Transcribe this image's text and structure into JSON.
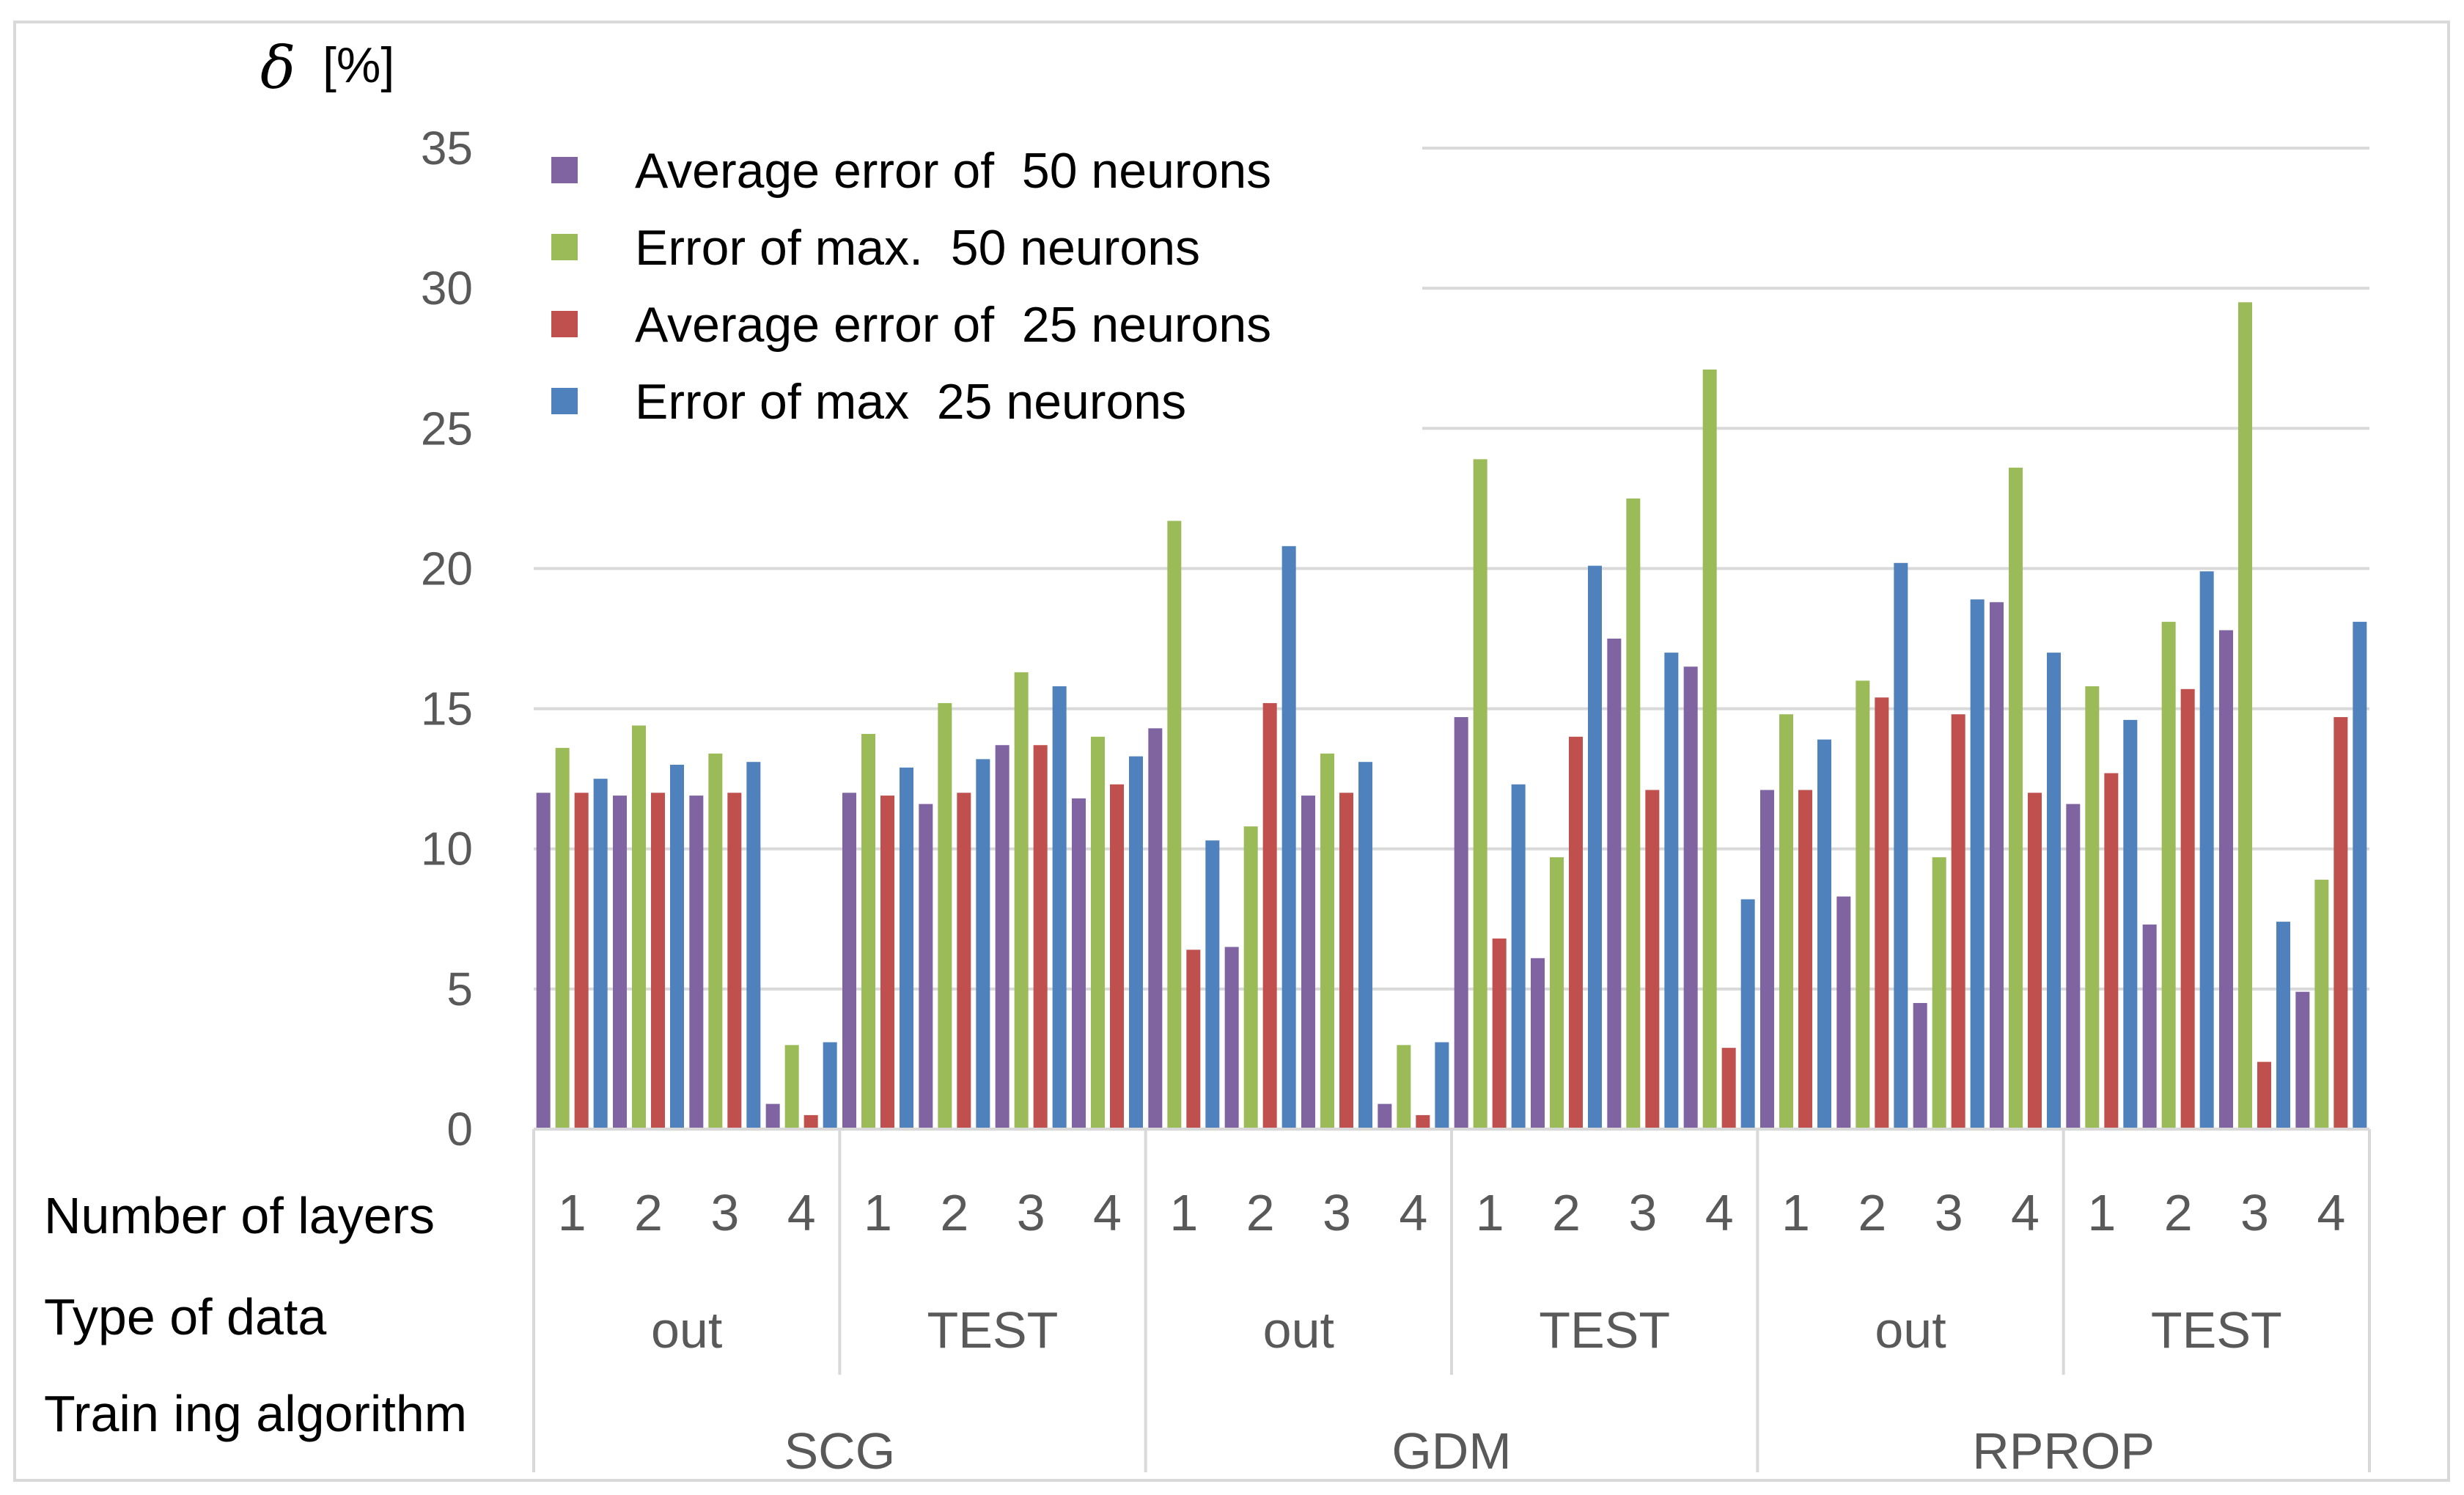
{
  "chart_data": {
    "type": "bar",
    "ylabel_symbol": "δ",
    "ylabel_unit": "[%]",
    "ylim": [
      0,
      35
    ],
    "yticks": [
      0,
      5,
      10,
      15,
      20,
      25,
      30,
      35
    ],
    "grid": true,
    "legend_position": "top-left",
    "row_labels": {
      "layers": "Number of layers",
      "data_type": "Type of data",
      "algorithm": "Train ing algorithm"
    },
    "layers": [
      "1",
      "2",
      "3",
      "4",
      "1",
      "2",
      "3",
      "4",
      "1",
      "2",
      "3",
      "4",
      "1",
      "2",
      "3",
      "4",
      "1",
      "2",
      "3",
      "4",
      "1",
      "2",
      "3",
      "4"
    ],
    "data_types": [
      "out",
      "TEST",
      "out",
      "TEST",
      "out",
      "TEST"
    ],
    "algorithms": [
      "SCG",
      "GDM",
      "RPROP"
    ],
    "series": [
      {
        "name": "Average error of  50 neurons",
        "color": "#8064A2",
        "values": [
          12.0,
          11.9,
          11.9,
          0.9,
          12.0,
          11.6,
          13.7,
          11.8,
          14.3,
          6.5,
          11.9,
          0.9,
          14.7,
          6.1,
          17.5,
          16.5,
          12.1,
          8.3,
          4.5,
          18.8,
          11.6,
          7.3,
          17.8,
          4.9
        ]
      },
      {
        "name": "Error of max.  50 neurons",
        "color": "#9BBB59",
        "values": [
          13.6,
          14.4,
          13.4,
          3.0,
          14.1,
          15.2,
          16.3,
          14.0,
          21.7,
          10.8,
          13.4,
          3.0,
          23.9,
          9.7,
          22.5,
          27.1,
          14.8,
          16.0,
          9.7,
          23.6,
          15.8,
          18.1,
          29.5,
          8.9
        ]
      },
      {
        "name": "Average error of  25 neurons",
        "color": "#C0504D",
        "values": [
          12.0,
          12.0,
          12.0,
          0.5,
          11.9,
          12.0,
          13.7,
          12.3,
          6.4,
          15.2,
          12.0,
          0.5,
          6.8,
          14.0,
          12.1,
          2.9,
          12.1,
          15.4,
          14.8,
          12.0,
          12.7,
          15.7,
          2.4,
          14.7
        ]
      },
      {
        "name": "Error of max  25 neurons",
        "color": "#4F81BD",
        "values": [
          12.5,
          13.0,
          13.1,
          3.1,
          12.9,
          13.2,
          15.8,
          13.3,
          10.3,
          20.8,
          13.1,
          3.1,
          12.3,
          20.1,
          17.0,
          8.2,
          13.9,
          20.2,
          18.9,
          17.0,
          14.6,
          19.9,
          7.4,
          18.1
        ]
      }
    ]
  }
}
